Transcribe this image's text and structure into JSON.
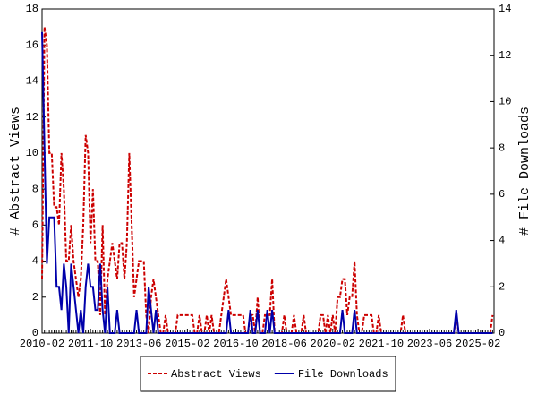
{
  "chart_data": {
    "type": "line",
    "y_label": "# Abstract Views",
    "y2_label": "# File Downloads",
    "legend": "bottom",
    "ylim": [
      0,
      18
    ],
    "yticks": [
      0,
      2,
      4,
      6,
      8,
      10,
      12,
      14,
      16,
      18
    ],
    "y2lim": [
      0,
      14
    ],
    "y2ticks": [
      0,
      2,
      4,
      6,
      8,
      10,
      12,
      14
    ],
    "categories": [
      "2010-02",
      null,
      null,
      null,
      null,
      null,
      null,
      null,
      null,
      null,
      null,
      null,
      null,
      null,
      null,
      null,
      null,
      null,
      null,
      null,
      "2011-10",
      null,
      null,
      null,
      null,
      null,
      null,
      null,
      null,
      null,
      null,
      null,
      null,
      null,
      null,
      null,
      null,
      null,
      null,
      null,
      "2013-06",
      null,
      null,
      null,
      null,
      null,
      null,
      null,
      null,
      null,
      null,
      null,
      null,
      null,
      null,
      null,
      null,
      null,
      null,
      null,
      "2015-02",
      null,
      null,
      null,
      null,
      null,
      null,
      null,
      null,
      null,
      null,
      null,
      null,
      null,
      null,
      null,
      null,
      null,
      null,
      null,
      "2016-10",
      null,
      null,
      null,
      null,
      null,
      null,
      null,
      null,
      null,
      null,
      null,
      null,
      null,
      null,
      null,
      null,
      null,
      null,
      null,
      "2018-06",
      null,
      null,
      null,
      null,
      null,
      null,
      null,
      null,
      null,
      null,
      null,
      null,
      null,
      null,
      null,
      null,
      null,
      null,
      null,
      "2020-02",
      null,
      null,
      null,
      null,
      null,
      null,
      null,
      null,
      null,
      null,
      null,
      null,
      null,
      null,
      null,
      null,
      null,
      null,
      null,
      "2021-10",
      null,
      null,
      null,
      null,
      null,
      null,
      null,
      null,
      null,
      null,
      null,
      null,
      null,
      null,
      null,
      null,
      null,
      null,
      null,
      "2023-06",
      null,
      null,
      null,
      null,
      null,
      null,
      null,
      null,
      null,
      null,
      null,
      null,
      null,
      null,
      null,
      null,
      null,
      null,
      null,
      "2025-02",
      null,
      null,
      null,
      null,
      null,
      null
    ],
    "series": [
      {
        "name": "Abstract Views",
        "color": "#cc0000",
        "style": "dashed",
        "axis": "y",
        "values": [
          3,
          17,
          16,
          10,
          10,
          7,
          7,
          6,
          10,
          8,
          4,
          4,
          6,
          4,
          3,
          2,
          3,
          6,
          11,
          10,
          5,
          8,
          4,
          4,
          1,
          6,
          1,
          3,
          4,
          5,
          4,
          3,
          5,
          5,
          3,
          5,
          10,
          6,
          2,
          3,
          4,
          4,
          4,
          1,
          0,
          2,
          3,
          2,
          1,
          0,
          0,
          1,
          0,
          0,
          0,
          0,
          1,
          1,
          1,
          1,
          1,
          1,
          1,
          0,
          0,
          1,
          0,
          0,
          1,
          0,
          1,
          0,
          0,
          0,
          1,
          2,
          3,
          2,
          1,
          1,
          1,
          1,
          1,
          1,
          0,
          0,
          1,
          1,
          0,
          2,
          0,
          0,
          1,
          1,
          1,
          3,
          0,
          0,
          0,
          0,
          1,
          0,
          0,
          0,
          1,
          0,
          0,
          0,
          1,
          0,
          0,
          0,
          0,
          0,
          0,
          1,
          1,
          0,
          1,
          0,
          1,
          0,
          2,
          2,
          3,
          3,
          1,
          2,
          2,
          4,
          1,
          0,
          0,
          1,
          1,
          1,
          1,
          0,
          0,
          1,
          0,
          0,
          0,
          0,
          0,
          0,
          0,
          0,
          0,
          1,
          0,
          0,
          0,
          0,
          0,
          0,
          0,
          0,
          0,
          0,
          0,
          0,
          0,
          0,
          0,
          0,
          0,
          0,
          0,
          0,
          0,
          1,
          0,
          0,
          0,
          0,
          0,
          0,
          0,
          0,
          0,
          0,
          0,
          0,
          0,
          0,
          1
        ]
      },
      {
        "name": "File Downloads",
        "color": "#0000aa",
        "style": "solid",
        "axis": "y2",
        "values": [
          13,
          8,
          3,
          5,
          5,
          5,
          2,
          2,
          1,
          3,
          2,
          0,
          3,
          2,
          1,
          0,
          1,
          0,
          2,
          3,
          2,
          2,
          1,
          1,
          3,
          1,
          0,
          2,
          0,
          0,
          0,
          1,
          0,
          0,
          0,
          0,
          0,
          0,
          0,
          1,
          0,
          0,
          0,
          0,
          2,
          1,
          0,
          1,
          0,
          0,
          0,
          0,
          0,
          0,
          0,
          0,
          0,
          0,
          0,
          0,
          0,
          0,
          0,
          0,
          0,
          0,
          0,
          0,
          0,
          0,
          0,
          0,
          0,
          0,
          0,
          0,
          0,
          1,
          0,
          0,
          0,
          0,
          0,
          0,
          0,
          0,
          1,
          0,
          0,
          1,
          0,
          0,
          0,
          1,
          0,
          1,
          0,
          0,
          0,
          0,
          0,
          0,
          0,
          0,
          0,
          0,
          0,
          0,
          0,
          0,
          0,
          0,
          0,
          0,
          0,
          0,
          0,
          0,
          0,
          0,
          0,
          0,
          0,
          0,
          1,
          0,
          0,
          0,
          0,
          1,
          0,
          0,
          0,
          0,
          0,
          0,
          0,
          0,
          0,
          0,
          0,
          0,
          0,
          0,
          0,
          0,
          0,
          0,
          0,
          0,
          0,
          0,
          0,
          0,
          0,
          0,
          0,
          0,
          0,
          0,
          0,
          0,
          0,
          0,
          0,
          0,
          0,
          0,
          0,
          0,
          0,
          1,
          0,
          0,
          0,
          0,
          0,
          0,
          0,
          0,
          0,
          0,
          0,
          0,
          0,
          0,
          0
        ]
      }
    ]
  }
}
